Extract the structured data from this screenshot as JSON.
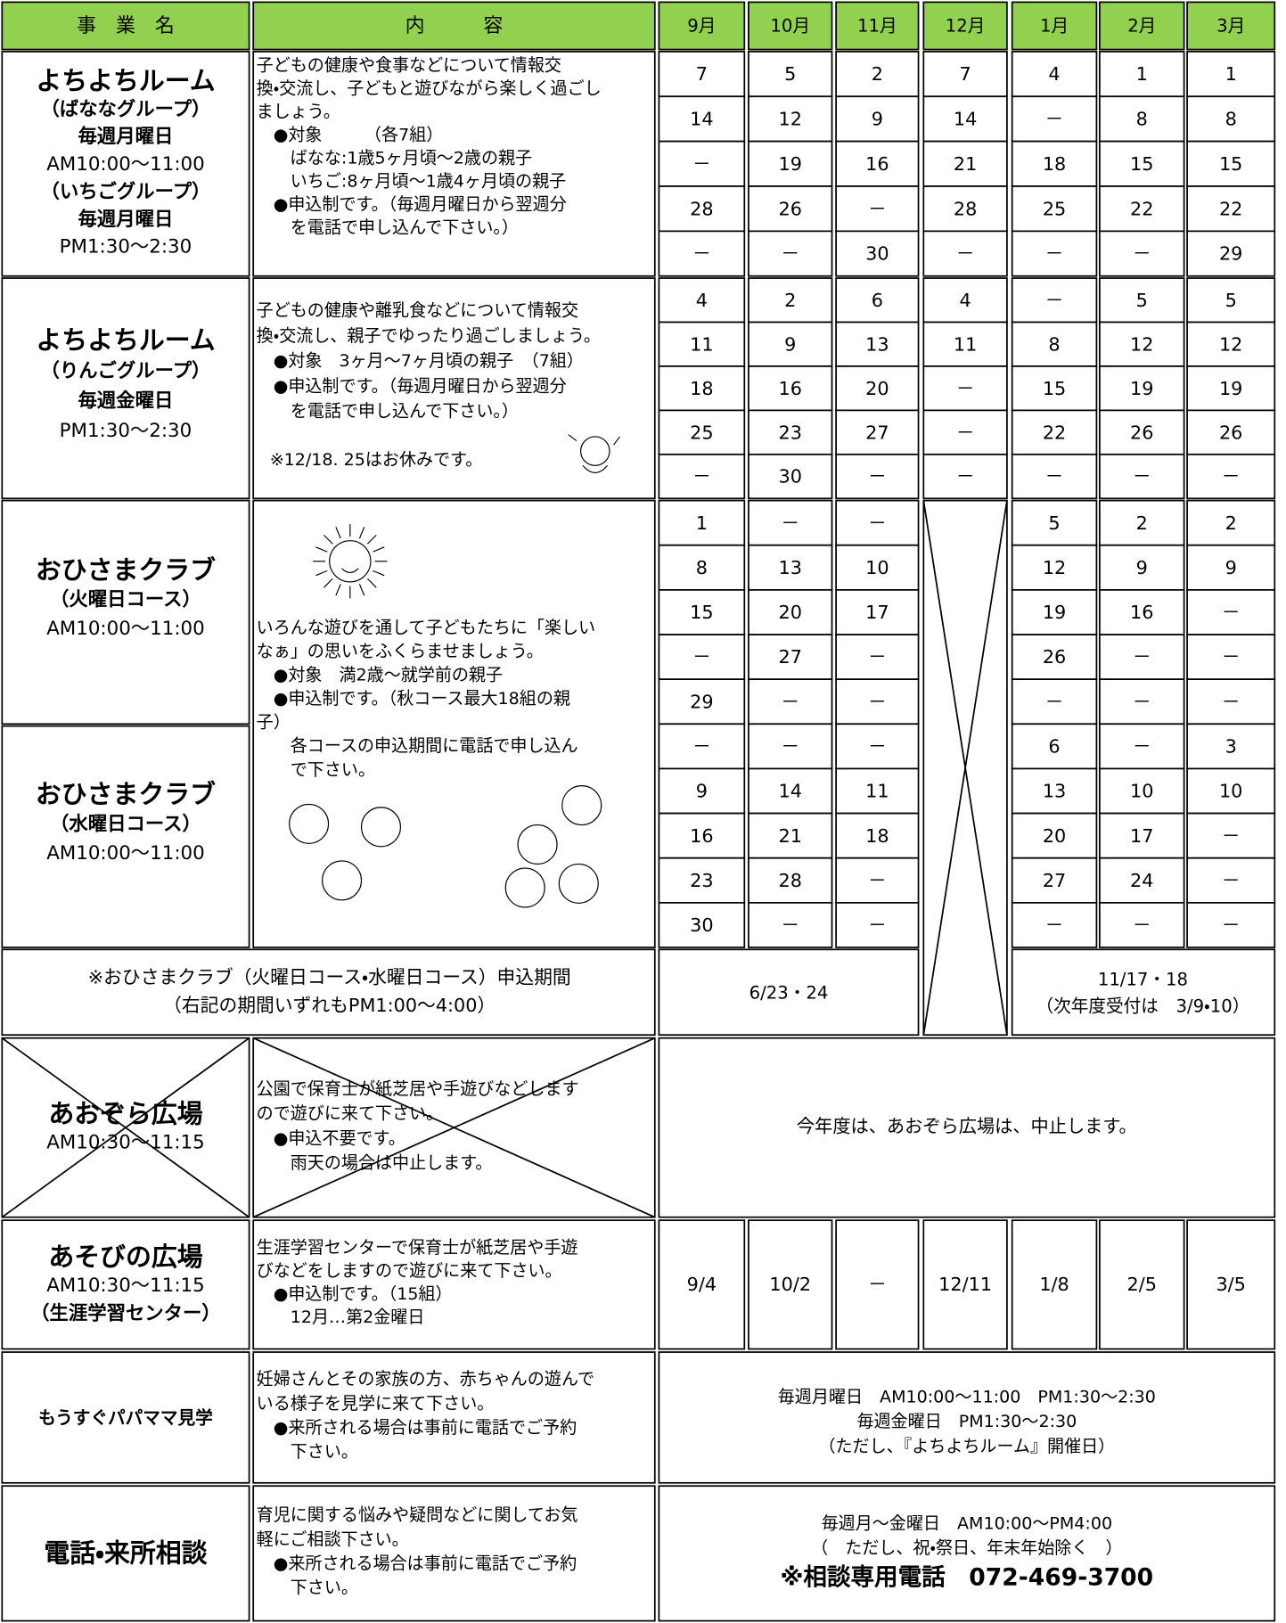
{
  "header": {
    "program": "事　業　名",
    "content": "内　　　容",
    "months": [
      "9月",
      "10月",
      "11月",
      "12月",
      "1月",
      "2月",
      "3月"
    ]
  },
  "yochiyochi_banana": {
    "name_lines": [
      "よちよちルーム",
      "（ばななグループ）",
      "毎週月曜日",
      "AM10:00～11:00",
      "（いちごグループ）",
      "毎週月曜日",
      "PM1:30～2:30"
    ],
    "content_lines": [
      "子どもの健康や食事などについて情報交",
      "換・交流し、子どもと遊びながら楽しく過ごし",
      "ましょう。",
      "　●対象　　　（各7組）",
      "　　ばなな:1歳5ヶ月頃～2歳の親子",
      "　　いちご:8ヶ月頃～1歳4ヶ月頃の親子",
      "　●申込制です。（毎週月曜日から翌週分",
      "　　を電話で申し込んで下さい。）"
    ],
    "dates": [
      [
        7,
        5,
        2,
        7,
        4,
        1,
        1
      ],
      [
        14,
        12,
        9,
        14,
        "－",
        8,
        8
      ],
      [
        "－",
        19,
        16,
        21,
        18,
        15,
        15
      ],
      [
        28,
        26,
        "－",
        28,
        25,
        22,
        22
      ],
      [
        "－",
        "－",
        30,
        "－",
        "－",
        "－",
        29
      ]
    ]
  },
  "yochiyochi_ringo": {
    "name_lines": [
      "よちよちルーム",
      "（りんごグループ）",
      "毎週金曜日",
      "PM1:30～2:30"
    ],
    "content_lines": [
      "子どもの健康や離乳食などについて情報交",
      "換・交流し、親子でゆったり過ごしましょう。",
      "　●対象　3ヶ月～7ヶ月頃の親子　（7組）",
      "　●申込制です。（毎週月曜日から翌週分",
      "　　を電話で申し込んで下さい。）"
    ],
    "note": "※12/18. 25はお休みです。",
    "dates": [
      [
        4,
        2,
        6,
        4,
        "－",
        5,
        5
      ],
      [
        11,
        9,
        13,
        11,
        8,
        12,
        12
      ],
      [
        18,
        16,
        20,
        "－",
        15,
        19,
        19
      ],
      [
        25,
        23,
        27,
        "－",
        22,
        26,
        26
      ],
      [
        "－",
        30,
        "－",
        "－",
        "－",
        "－",
        "－"
      ]
    ]
  },
  "ohisama": {
    "tuesday": {
      "name_lines": [
        "おひさまクラブ",
        "（火曜日コース）",
        "AM10:00～11:00"
      ],
      "dates": [
        [
          1,
          "－",
          "－",
          5,
          2,
          2
        ],
        [
          8,
          13,
          10,
          12,
          9,
          9
        ],
        [
          15,
          20,
          17,
          19,
          16,
          "－"
        ],
        [
          "－",
          27,
          "－",
          26,
          "－",
          "－"
        ],
        [
          29,
          "－",
          "－",
          "－",
          "－",
          "－"
        ]
      ]
    },
    "wednesday": {
      "name_lines": [
        "おひさまクラブ",
        "（水曜日コース）",
        "AM10:00～11:00"
      ],
      "dates": [
        [
          "－",
          "－",
          "－",
          6,
          "－",
          3
        ],
        [
          9,
          14,
          11,
          13,
          10,
          10
        ],
        [
          16,
          21,
          18,
          20,
          17,
          "－"
        ],
        [
          23,
          28,
          "－",
          27,
          24,
          "－"
        ],
        [
          30,
          "－",
          "－",
          "－",
          "－",
          "－"
        ]
      ]
    },
    "content_lines": [
      "いろんな遊びを通して子どもたちに「楽しい",
      "なぁ」の思いをふくらませましょう。",
      "　●対象　満2歳～就学前の親子",
      "　●申込制です。（秋コース最大18組の親",
      "子）",
      "　　各コースの申込期間に電話で申し込ん",
      "　　で下さい。"
    ],
    "period": {
      "label_lines": [
        "※おひさまクラブ（火曜日コース・水曜日コース）申込期間",
        "（右記の期間いずれもPM1:00～4:00）"
      ],
      "autumn": "6/23・24",
      "spring_lines": [
        "11/17・18",
        "（次年度受付は　3/9・10）"
      ]
    }
  },
  "aozora": {
    "name_lines": [
      "あおぞら広場",
      "AM10:30～11:15"
    ],
    "content_lines": [
      "公園で保育士が紙芝居や手遊びなどします",
      "ので遊びに来て下さい。",
      "　●申込不要です。",
      "　　雨天の場合は中止します。"
    ],
    "note": "今年度は、あおぞら広場は、中止します。"
  },
  "asobi": {
    "name_lines": [
      "あそびの広場",
      "AM10:30～11:15",
      "（生涯学習センター）"
    ],
    "content_lines": [
      "生涯学習センターで保育士が紙芝居や手遊",
      "びなどをしますので遊びに来て下さい。",
      "　●申込制です。（15組）",
      "　　12月…第2金曜日"
    ],
    "dates": [
      "9/4",
      "10/2",
      "－",
      "12/11",
      "1/8",
      "2/5",
      "3/5"
    ]
  },
  "mousugu": {
    "name": "もうすぐパパママ見学",
    "content_lines": [
      "妊婦さんとその家族の方、赤ちゃんの遊んで",
      "いる様子を見学に来て下さい。",
      "　●来所される場合は事前に電話でご予約",
      "　　下さい。"
    ],
    "schedule_lines": [
      "毎週月曜日　AM10:00～11:00　PM1:30～2:30",
      "毎週金曜日　PM1:30～2:30",
      "（ただし、『よちよちルーム』開催日）"
    ]
  },
  "denwa": {
    "name": "電話・来所相談",
    "content_lines": [
      "育児に関する悩みや疑問などに関してお気",
      "軽にご相談下さい。",
      "　●来所される場合は事前に電話でご予約",
      "　　下さい。"
    ],
    "schedule_lines": [
      "毎週月～金曜日　AM10:00～PM4:00",
      "（　ただし、祝・祭日、年末年始除く　）",
      "※相談専用電話　072-469-3700"
    ]
  }
}
